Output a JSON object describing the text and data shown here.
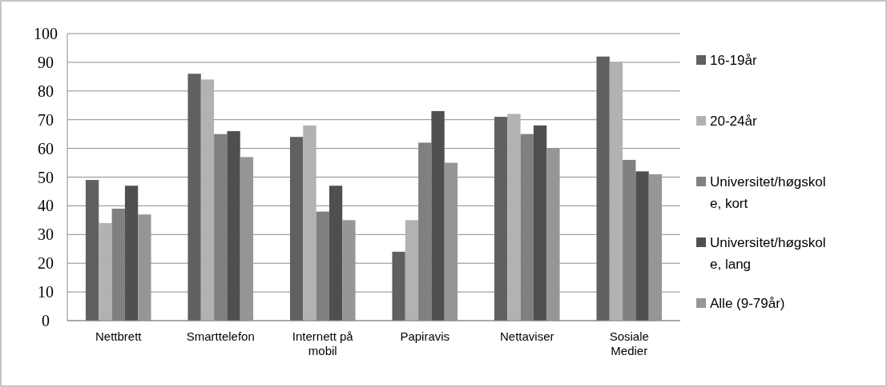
{
  "chart_data": {
    "type": "bar",
    "categories": [
      "Nettbrett",
      "Smarttelefon",
      "Internett på mobil",
      "Papiravis",
      "Nettaviser",
      "Sosiale Medier"
    ],
    "series": [
      {
        "name": "16-19år",
        "color": "#606060",
        "values": [
          49,
          86,
          64,
          24,
          71,
          92
        ]
      },
      {
        "name": "20-24år",
        "color": "#b2b2b2",
        "values": [
          34,
          84,
          68,
          35,
          72,
          90
        ]
      },
      {
        "name": "Universitet/høgskole, kort",
        "color": "#808080",
        "values": [
          39,
          65,
          38,
          62,
          65,
          56
        ]
      },
      {
        "name": "Universitet/høgskole, lang",
        "color": "#4f4f4f",
        "values": [
          47,
          66,
          47,
          73,
          68,
          52
        ]
      },
      {
        "name": "Alle (9-79år)",
        "color": "#969696",
        "values": [
          37,
          57,
          35,
          55,
          60,
          51
        ]
      }
    ],
    "ylim": [
      0,
      100
    ],
    "yticks": [
      0,
      10,
      20,
      30,
      40,
      50,
      60,
      70,
      80,
      90,
      100
    ],
    "grid": "y",
    "legend": "right"
  }
}
